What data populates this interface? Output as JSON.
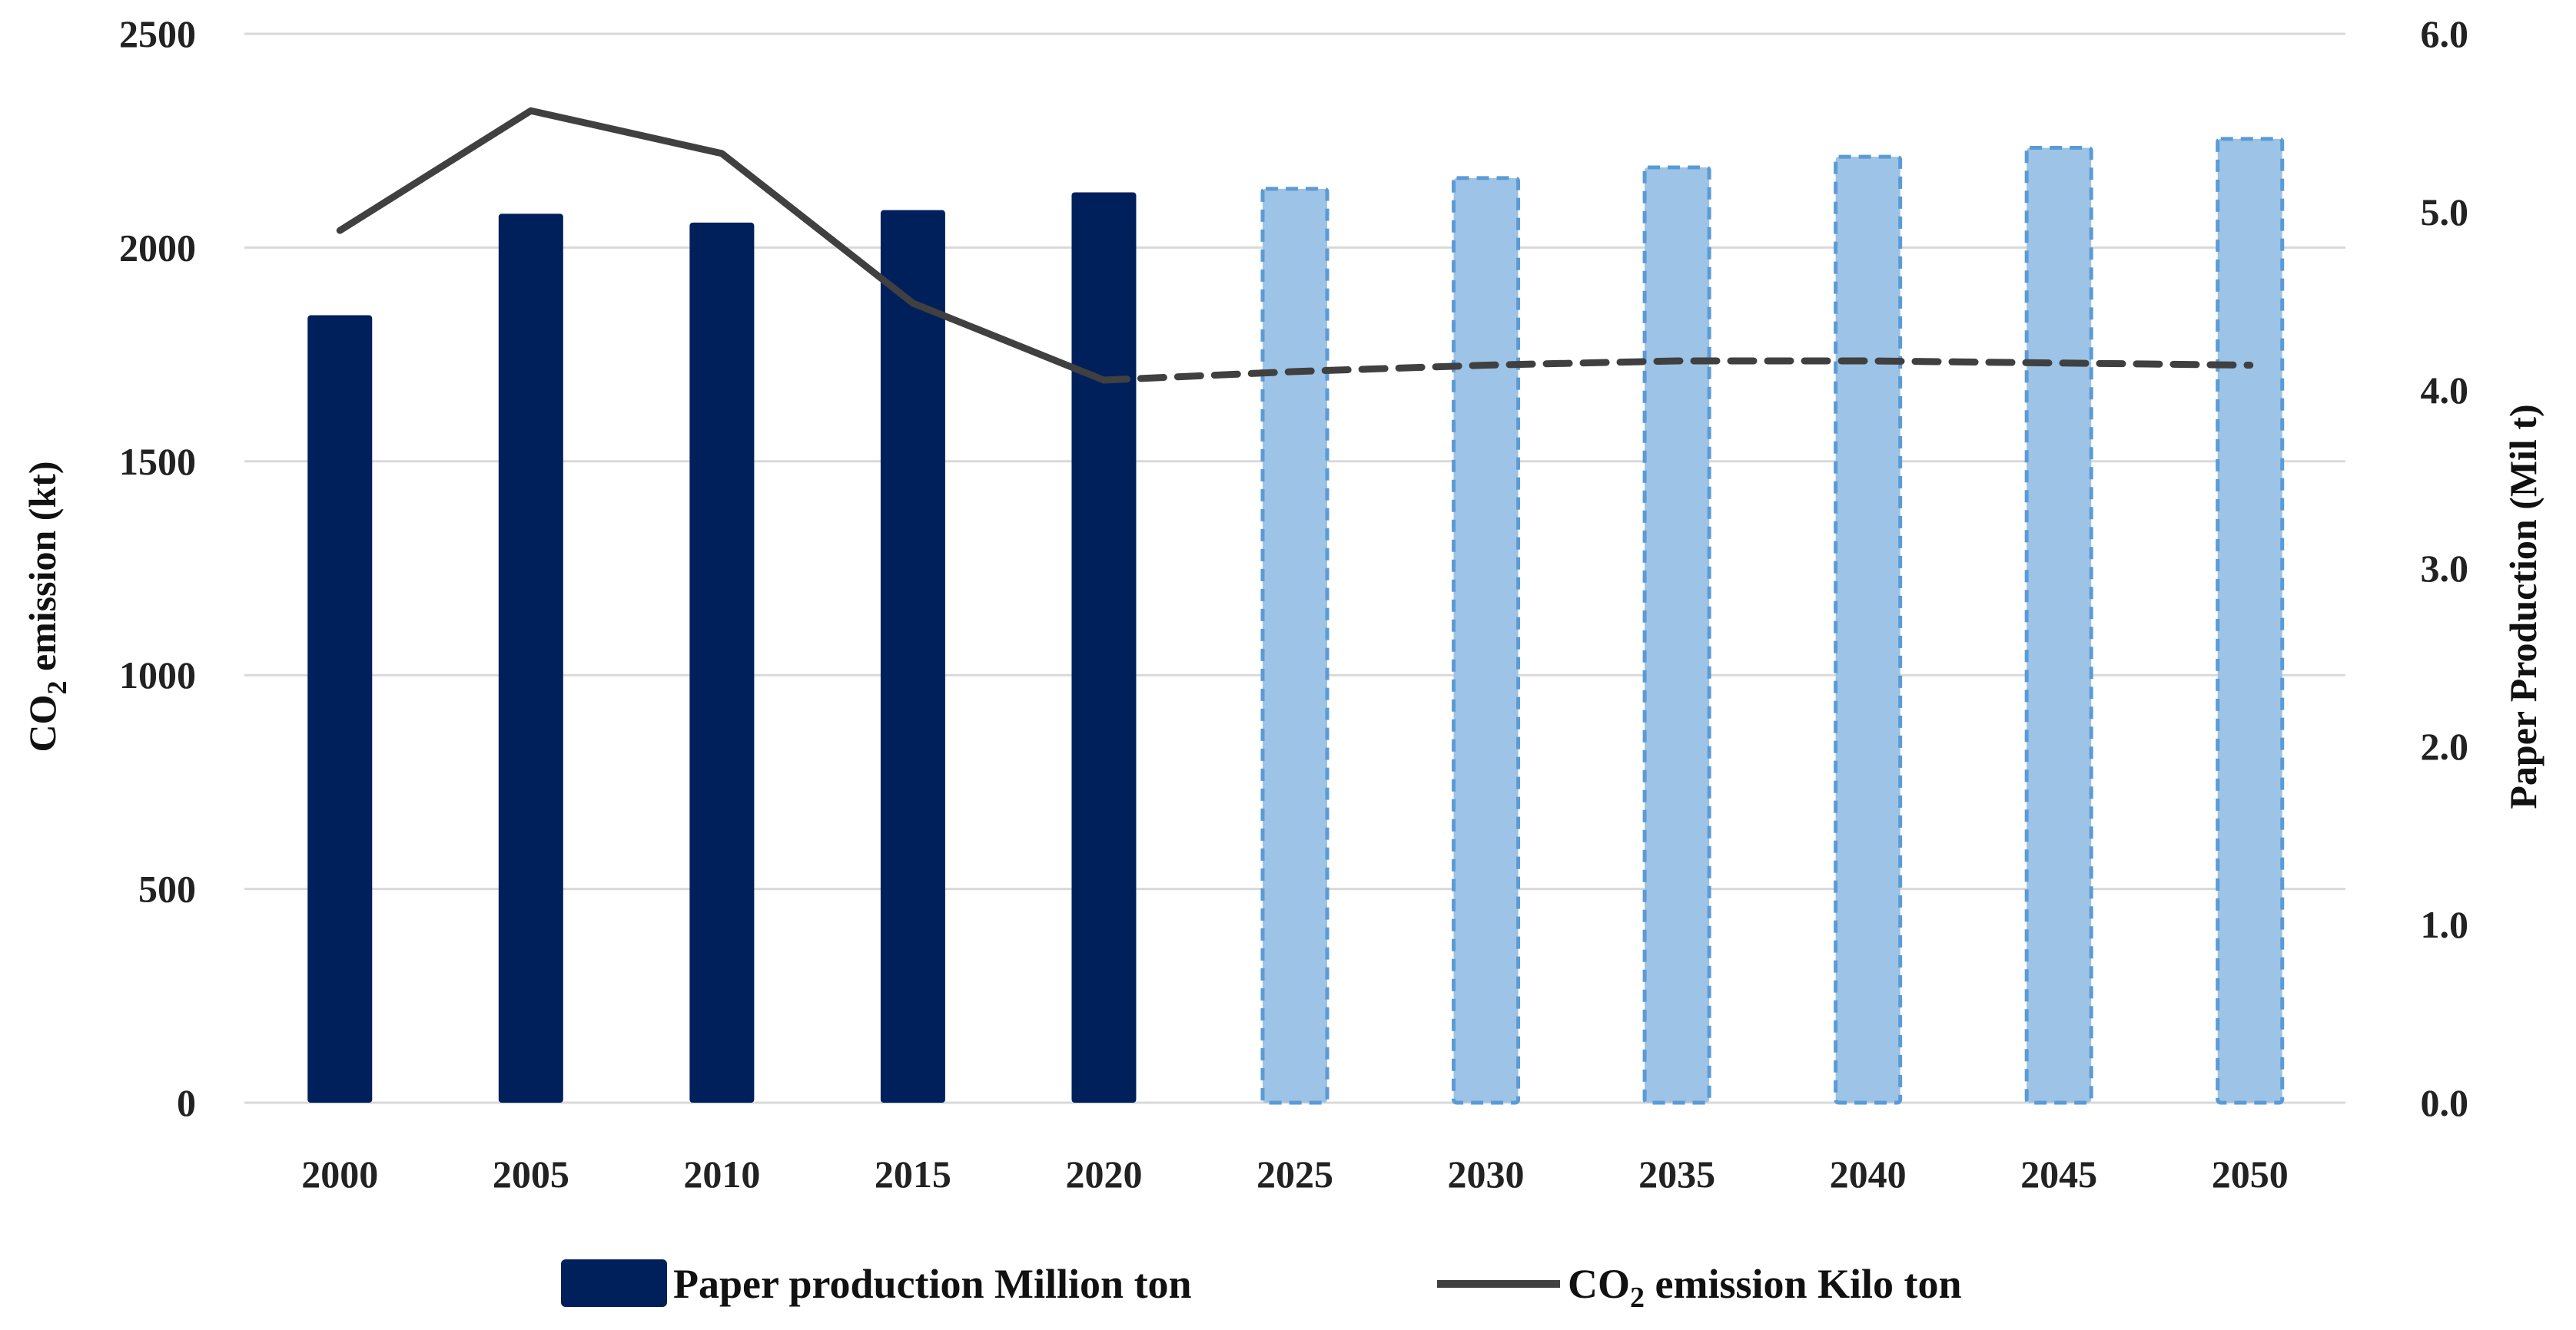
{
  "chart_data": {
    "type": "bar+line",
    "categories": [
      "2000",
      "2005",
      "2010",
      "2015",
      "2020",
      "2025",
      "2030",
      "2035",
      "2040",
      "2045",
      "2050"
    ],
    "series": [
      {
        "name": "Paper production Million ton",
        "axis": "right",
        "type": "bar",
        "values": [
          4.42,
          4.99,
          4.94,
          5.01,
          5.11,
          5.13,
          5.19,
          5.25,
          5.31,
          5.36,
          5.41
        ],
        "projected_from_index": 5
      },
      {
        "name": "CO2 emission Kilo ton",
        "axis": "left",
        "type": "line",
        "values": [
          2040,
          2320,
          2220,
          1870,
          1690,
          1710,
          1725,
          1735,
          1735,
          1730,
          1725
        ],
        "projected_from_index": 4
      }
    ],
    "left_axis": {
      "label_main": "CO",
      "label_sub": "2",
      "label_rest": " emission (kt)",
      "ylim": [
        0,
        2500
      ],
      "ticks": [
        "0",
        "500",
        "1000",
        "1500",
        "2000",
        "2500"
      ]
    },
    "right_axis": {
      "label": "Paper Production (Mil t)",
      "ylim": [
        0,
        6
      ],
      "ticks": [
        "0.0",
        "1.0",
        "2.0",
        "3.0",
        "4.0",
        "5.0",
        "6.0"
      ]
    },
    "grid": true,
    "legend": {
      "position": "bottom",
      "bar_label": "Paper production Million ton",
      "line_label_main": "CO",
      "line_label_sub": "2",
      "line_label_rest": " emission Kilo ton"
    },
    "colors": {
      "historical_bar": "#00205b",
      "projected_bar": "#9dc3e6",
      "projected_bar_border": "#5b9bd5",
      "line": "#404040",
      "grid": "#d9d9d9"
    }
  }
}
